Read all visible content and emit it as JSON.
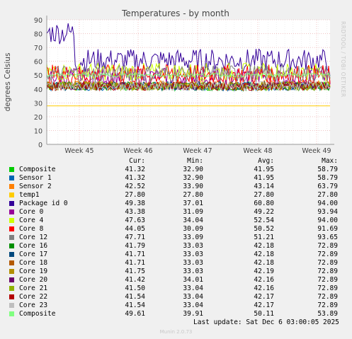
{
  "chart_data": {
    "type": "line",
    "title": "Temperatures - by month",
    "ylabel": "degrees Celsius",
    "ylim": [
      0,
      90
    ],
    "yticks": [
      0,
      10,
      20,
      30,
      40,
      50,
      60,
      70,
      80,
      90
    ],
    "xticks": [
      "Week 45",
      "Week 46",
      "Week 47",
      "Week 48",
      "Week 49"
    ],
    "grid": true,
    "legend_headers": {
      "cur": "Cur:",
      "min": "Min:",
      "avg": "Avg:",
      "max": "Max:"
    },
    "series": [
      {
        "name": "Composite",
        "color": "#00cc00",
        "cur": "41.32",
        "min": "32.90",
        "avg": "41.95",
        "max": "58.79"
      },
      {
        "name": "Sensor 1",
        "color": "#0066b3",
        "cur": "41.32",
        "min": "32.90",
        "avg": "41.95",
        "max": "58.79"
      },
      {
        "name": "Sensor 2",
        "color": "#ff8000",
        "cur": "42.52",
        "min": "33.90",
        "avg": "43.14",
        "max": "63.79"
      },
      {
        "name": "temp1",
        "color": "#ffcc00",
        "cur": "27.80",
        "min": "27.80",
        "avg": "27.80",
        "max": "27.80"
      },
      {
        "name": "Package id 0",
        "color": "#330099",
        "cur": "49.38",
        "min": "37.01",
        "avg": "60.80",
        "max": "94.00"
      },
      {
        "name": "Core 0",
        "color": "#990099",
        "cur": "43.38",
        "min": "31.09",
        "avg": "49.22",
        "max": "93.94"
      },
      {
        "name": "Core 4",
        "color": "#ccff00",
        "cur": "47.63",
        "min": "34.04",
        "avg": "52.54",
        "max": "94.00"
      },
      {
        "name": "Core 8",
        "color": "#ff0000",
        "cur": "44.05",
        "min": "30.09",
        "avg": "50.52",
        "max": "91.69"
      },
      {
        "name": "Core 12",
        "color": "#808080",
        "cur": "47.71",
        "min": "33.09",
        "avg": "51.21",
        "max": "93.65"
      },
      {
        "name": "Core 16",
        "color": "#008f00",
        "cur": "41.79",
        "min": "33.03",
        "avg": "42.18",
        "max": "72.89"
      },
      {
        "name": "Core 17",
        "color": "#00487d",
        "cur": "41.71",
        "min": "33.03",
        "avg": "42.18",
        "max": "72.89"
      },
      {
        "name": "Core 18",
        "color": "#b35a00",
        "cur": "41.71",
        "min": "33.03",
        "avg": "42.18",
        "max": "72.89"
      },
      {
        "name": "Core 19",
        "color": "#b38f00",
        "cur": "41.75",
        "min": "33.03",
        "avg": "42.19",
        "max": "72.89"
      },
      {
        "name": "Core 20",
        "color": "#6b006b",
        "cur": "41.42",
        "min": "34.01",
        "avg": "42.16",
        "max": "72.89"
      },
      {
        "name": "Core 21",
        "color": "#8fb300",
        "cur": "41.50",
        "min": "33.04",
        "avg": "42.16",
        "max": "72.89"
      },
      {
        "name": "Core 22",
        "color": "#b30000",
        "cur": "41.54",
        "min": "33.04",
        "avg": "42.17",
        "max": "72.89"
      },
      {
        "name": "Core 23",
        "color": "#bebebe",
        "cur": "41.54",
        "min": "33.04",
        "avg": "42.17",
        "max": "72.89"
      },
      {
        "name": "Composite",
        "color": "#80ff80",
        "cur": "49.61",
        "min": "39.91",
        "avg": "50.11",
        "max": "53.89"
      }
    ]
  },
  "footer": {
    "last_update": "Last update: Sat Dec  6 03:00:05 2025",
    "munin_version": "Munin 2.0.73",
    "side_label": "RRDTOOL / TOBI OETIKER"
  }
}
